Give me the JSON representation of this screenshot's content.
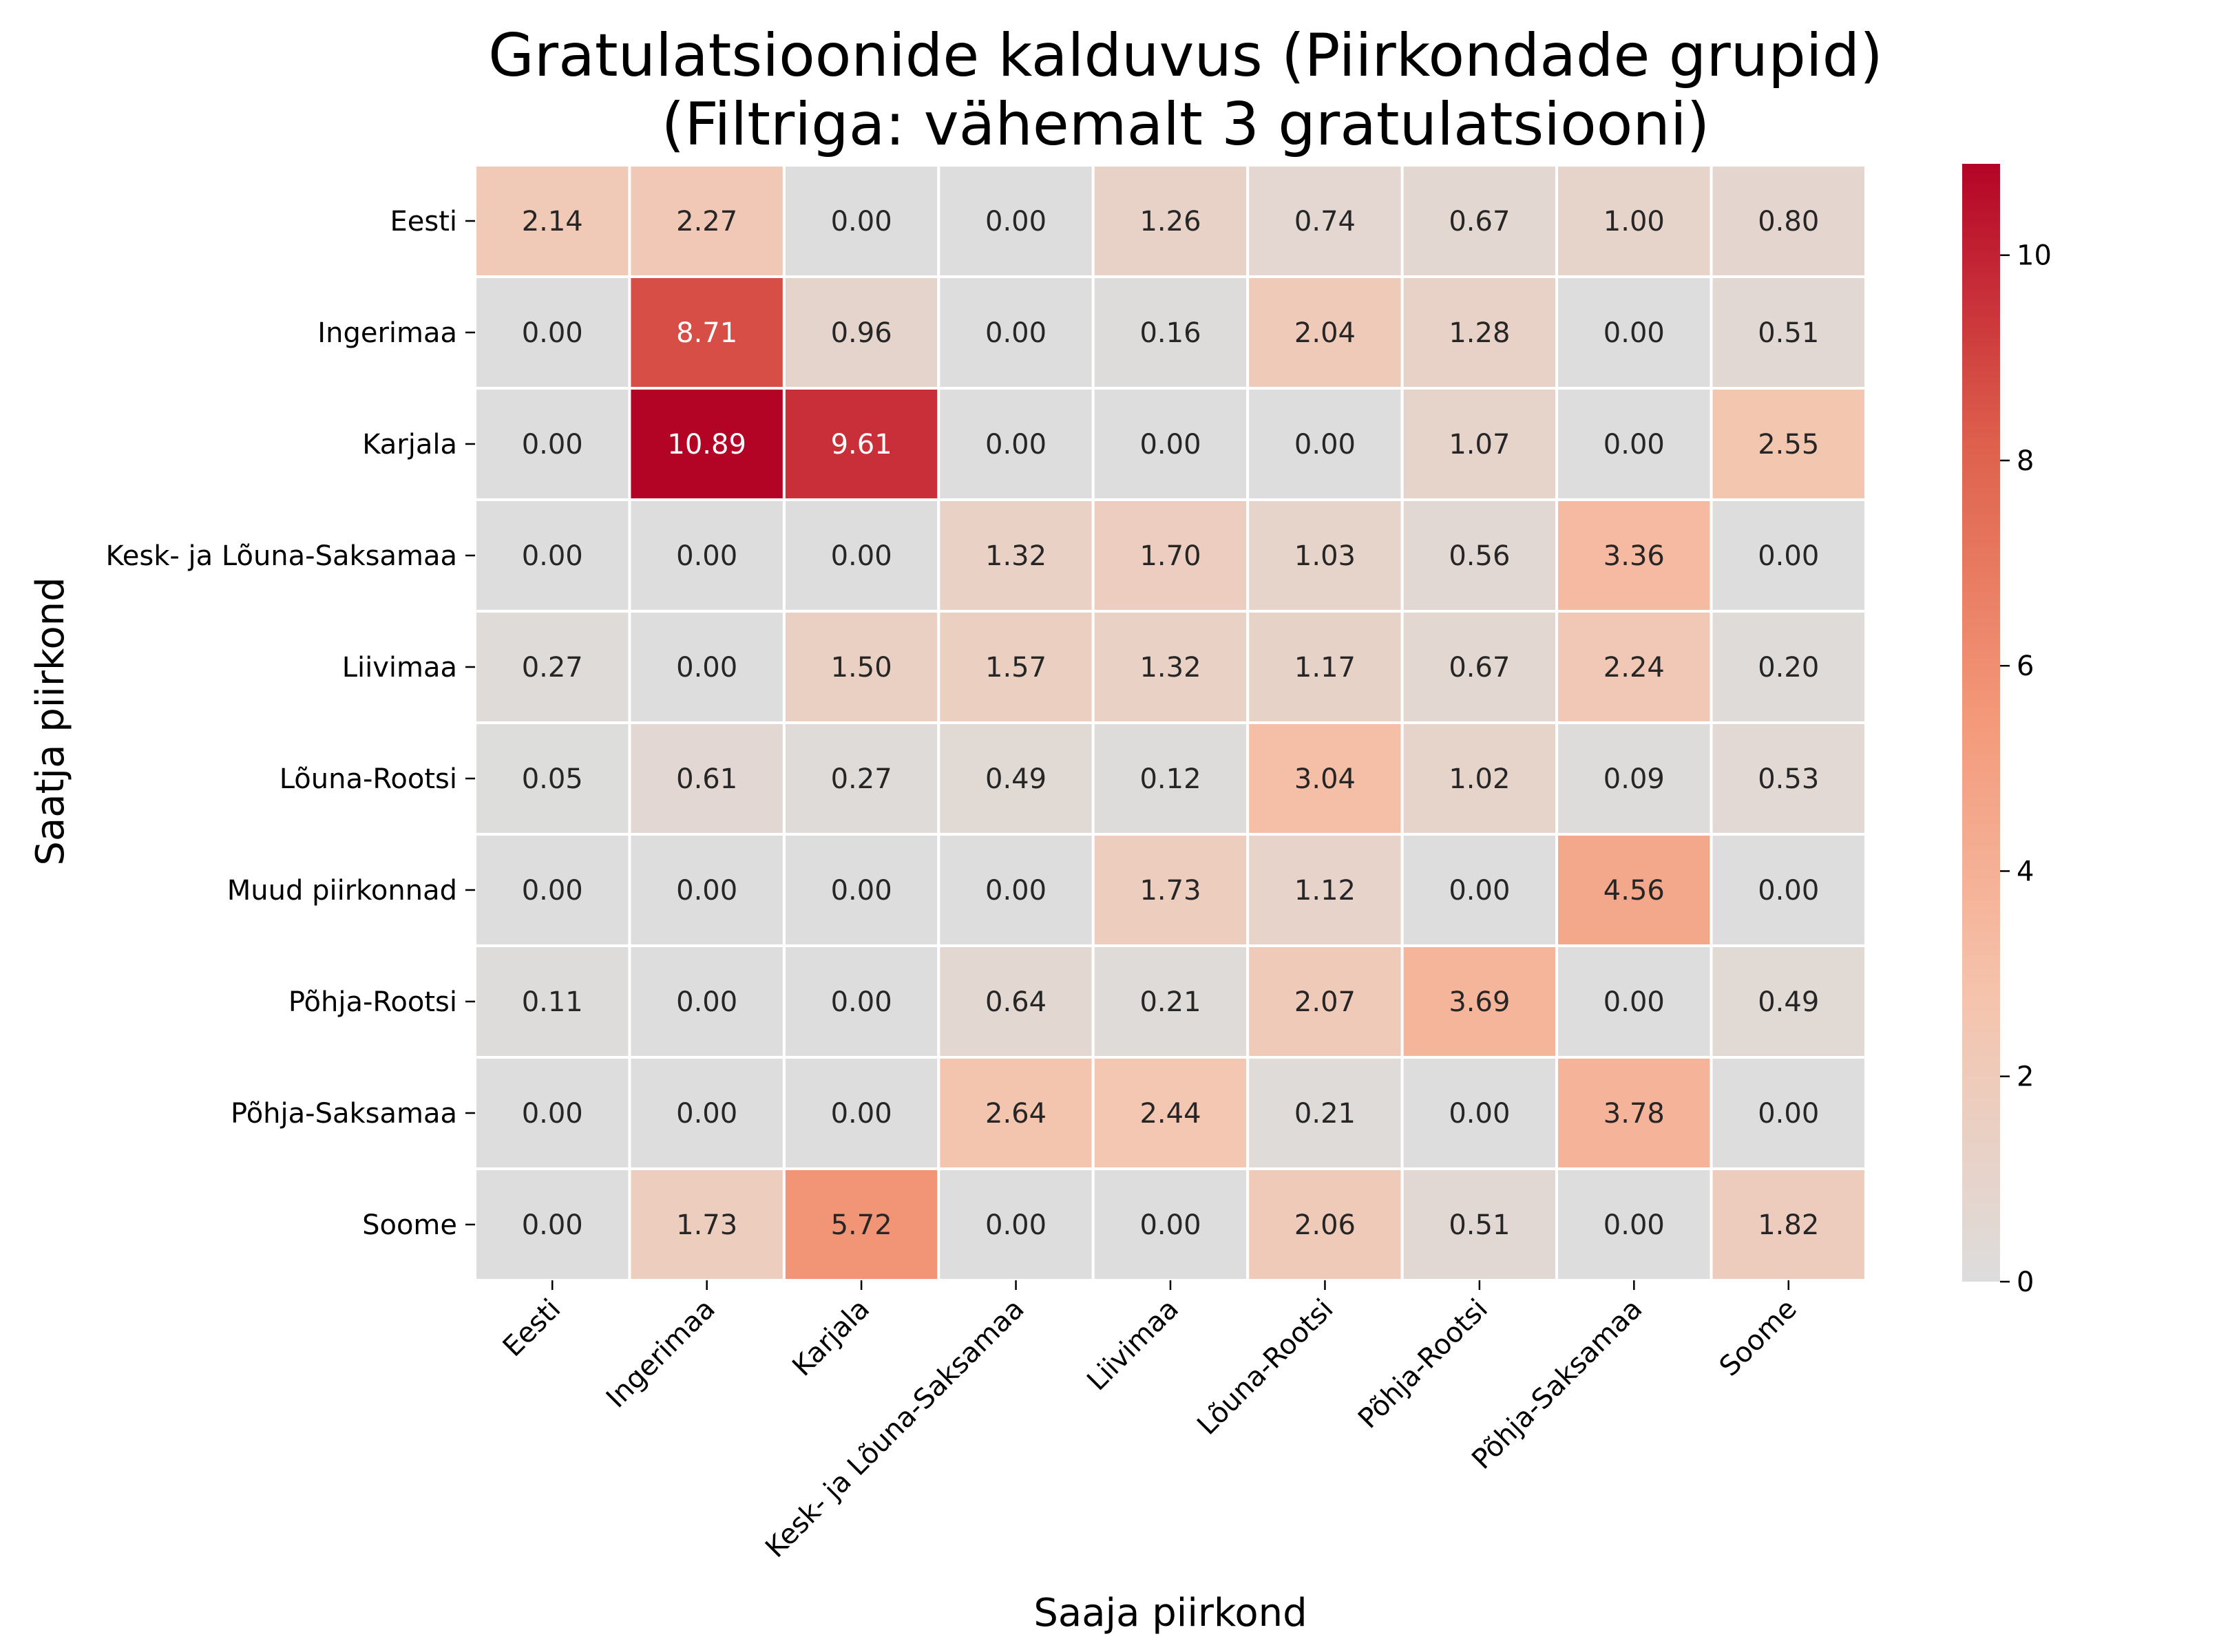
{
  "chart_data": {
    "type": "heatmap",
    "title": "Gratulatsioonide kalduvus (Piirkondade grupid)",
    "subtitle": "(Filtriga: vähemalt 3 gratulatsiooni)",
    "xlabel": "Saaja piirkond",
    "ylabel": "Saatja piirkond",
    "x": [
      "Eesti",
      "Ingerimaa",
      "Karjala",
      "Kesk- ja Lõuna-Saksamaa",
      "Liivimaa",
      "Lõuna-Rootsi",
      "Põhja-Rootsi",
      "Põhja-Saksamaa",
      "Soome"
    ],
    "y": [
      "Eesti",
      "Ingerimaa",
      "Karjala",
      "Kesk- ja Lõuna-Saksamaa",
      "Liivimaa",
      "Lõuna-Rootsi",
      "Muud piirkonnad",
      "Põhja-Rootsi",
      "Põhja-Saksamaa",
      "Soome"
    ],
    "values": [
      [
        2.14,
        2.27,
        0.0,
        0.0,
        1.26,
        0.74,
        0.67,
        1.0,
        0.8
      ],
      [
        0.0,
        8.71,
        0.96,
        0.0,
        0.16,
        2.04,
        1.28,
        0.0,
        0.51
      ],
      [
        0.0,
        10.89,
        9.61,
        0.0,
        0.0,
        0.0,
        1.07,
        0.0,
        2.55
      ],
      [
        0.0,
        0.0,
        0.0,
        1.32,
        1.7,
        1.03,
        0.56,
        3.36,
        0.0
      ],
      [
        0.27,
        0.0,
        1.5,
        1.57,
        1.32,
        1.17,
        0.67,
        2.24,
        0.2
      ],
      [
        0.05,
        0.61,
        0.27,
        0.49,
        0.12,
        3.04,
        1.02,
        0.09,
        0.53
      ],
      [
        0.0,
        0.0,
        0.0,
        0.0,
        1.73,
        1.12,
        0.0,
        4.56,
        0.0
      ],
      [
        0.11,
        0.0,
        0.0,
        0.64,
        0.21,
        2.07,
        3.69,
        0.0,
        0.49
      ],
      [
        0.0,
        0.0,
        0.0,
        2.64,
        2.44,
        0.21,
        0.0,
        3.78,
        0.0
      ],
      [
        0.0,
        1.73,
        5.72,
        0.0,
        0.0,
        2.06,
        0.51,
        0.0,
        1.82
      ]
    ],
    "value_range": [
      0,
      10.89
    ],
    "colormap": "coolwarm (centered at 0)",
    "colorbar_ticks": [
      0,
      2,
      4,
      6,
      8,
      10
    ],
    "annotation_format": "2 decimals",
    "grid": false,
    "legend": "colorbar right"
  }
}
